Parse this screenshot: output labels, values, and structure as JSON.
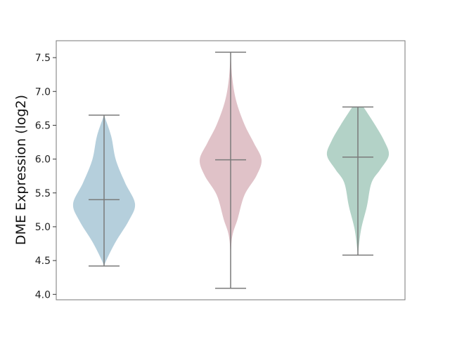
{
  "chart_data": {
    "type": "violin",
    "title": "",
    "xlabel": "",
    "ylabel": "DME Expression (log2)",
    "ylim": [
      3.92,
      7.75
    ],
    "yticks": [
      "4.0",
      "4.5",
      "5.0",
      "5.5",
      "6.0",
      "6.5",
      "7.0",
      "7.5"
    ],
    "grid": false,
    "categories": [
      "",
      "",
      ""
    ],
    "series": [
      {
        "color": "#b5cfdc",
        "min": 4.42,
        "max": 6.65,
        "median": 5.4,
        "density": [
          [
            4.42,
            0
          ],
          [
            4.53,
            0.1
          ],
          [
            4.78,
            0.38
          ],
          [
            5.09,
            0.8
          ],
          [
            5.34,
            1.0
          ],
          [
            5.65,
            0.68
          ],
          [
            5.99,
            0.38
          ],
          [
            6.34,
            0.23
          ],
          [
            6.65,
            0
          ]
        ]
      },
      {
        "color": "#e0c2c8",
        "min": 4.09,
        "max": 7.58,
        "median": 5.99,
        "density": [
          [
            4.09,
            0
          ],
          [
            4.78,
            0.03
          ],
          [
            5.12,
            0.23
          ],
          [
            5.47,
            0.45
          ],
          [
            5.75,
            0.83
          ],
          [
            5.99,
            1.0
          ],
          [
            6.24,
            0.75
          ],
          [
            6.51,
            0.45
          ],
          [
            6.86,
            0.18
          ],
          [
            7.21,
            0.05
          ],
          [
            7.58,
            0
          ]
        ]
      },
      {
        "color": "#b3d2c7",
        "min": 4.58,
        "max": 6.77,
        "median": 6.03,
        "density": [
          [
            4.58,
            0
          ],
          [
            4.95,
            0.1
          ],
          [
            5.3,
            0.29
          ],
          [
            5.65,
            0.44
          ],
          [
            5.85,
            0.73
          ],
          [
            6.06,
            1.0
          ],
          [
            6.27,
            0.85
          ],
          [
            6.51,
            0.55
          ],
          [
            6.77,
            0.18
          ]
        ]
      }
    ],
    "line_color": "#7a7a7a"
  }
}
